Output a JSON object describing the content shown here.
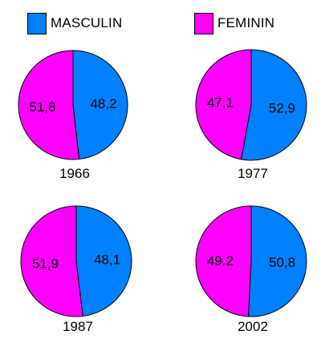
{
  "chart_data": [
    {
      "type": "pie",
      "title": "1966",
      "series": [
        {
          "name": "MASCULIN",
          "value": 48.2,
          "label": "48,2"
        },
        {
          "name": "FEMININ",
          "value": 51.8,
          "label": "51,8"
        }
      ]
    },
    {
      "type": "pie",
      "title": "1977",
      "series": [
        {
          "name": "MASCULIN",
          "value": 52.9,
          "label": "52,9"
        },
        {
          "name": "FEMININ",
          "value": 47.1,
          "label": "47,1"
        }
      ]
    },
    {
      "type": "pie",
      "title": "1987",
      "series": [
        {
          "name": "MASCULIN",
          "value": 48.1,
          "label": "48,1"
        },
        {
          "name": "FEMININ",
          "value": 51.9,
          "label": "51,9"
        }
      ]
    },
    {
      "type": "pie",
      "title": "2002",
      "series": [
        {
          "name": "MASCULIN",
          "value": 50.8,
          "label": "50,8"
        },
        {
          "name": "FEMININ",
          "value": 49.2,
          "label": "49.2"
        }
      ]
    }
  ],
  "legend": {
    "items": [
      {
        "label": "MASCULIN",
        "color": "#0080FF"
      },
      {
        "label": "FEMININ",
        "color": "#FF00FF"
      }
    ],
    "placement": "top"
  },
  "colors": {
    "MASCULIN": "#0080FF",
    "FEMININ": "#FF00FF"
  }
}
